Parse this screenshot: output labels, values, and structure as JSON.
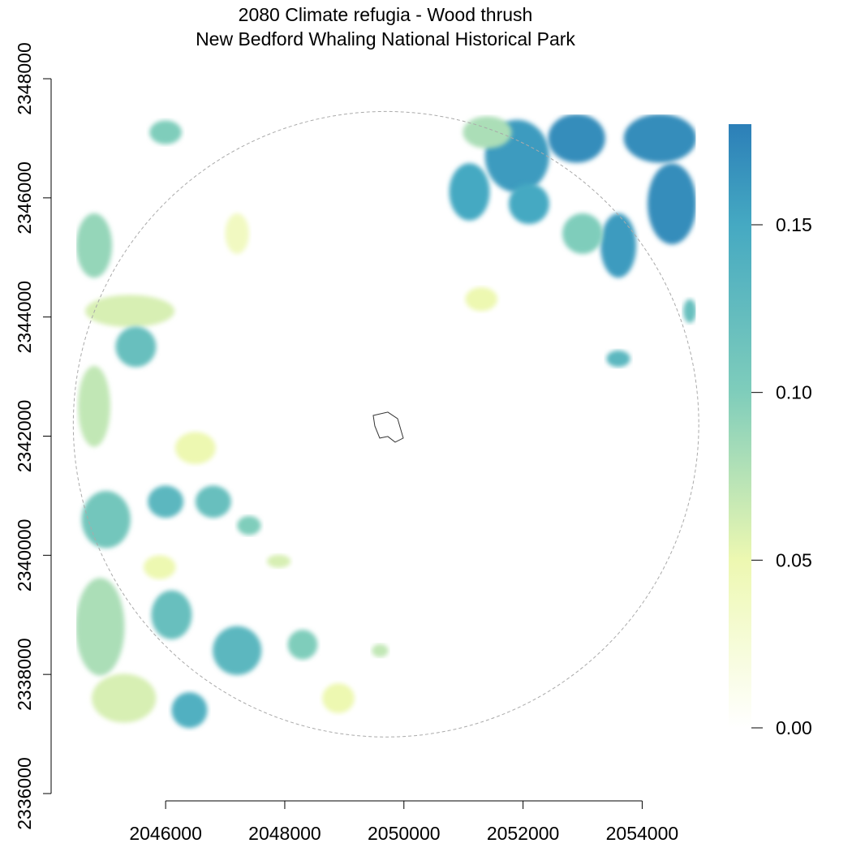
{
  "chart_data": {
    "type": "raster",
    "title": "2080 Climate refugia - Wood thrush",
    "subtitle": "New Bedford Whaling National Historical Park",
    "xlim": [
      2044500,
      2054900
    ],
    "ylim": [
      2335700,
      2348300
    ],
    "xticks": [
      2046000,
      2048000,
      2050000,
      2052000,
      2054000
    ],
    "yticks": [
      2336000,
      2338000,
      2340000,
      2342000,
      2344000,
      2346000,
      2348000
    ],
    "raster_extent": {
      "x": [
        2044500,
        2054900
      ],
      "y": [
        2336900,
        2347400
      ]
    },
    "zlim": [
      0,
      0.18
    ],
    "colorscale": [
      {
        "value": 0,
        "color": "#ffffff"
      },
      {
        "value": 0.05,
        "color": "#edf8b1"
      },
      {
        "value": 0.1,
        "color": "#7fcdbb"
      },
      {
        "value": 0.15,
        "color": "#45a9c2"
      },
      {
        "value": 0.18,
        "color": "#2c7fb8"
      }
    ],
    "zticks": [
      {
        "value": 0,
        "label": "0.00"
      },
      0.05,
      {
        "value": 0.1,
        "label": "0.10"
      },
      0.15
    ],
    "patches": {
      "x": [
        2051900,
        2052900,
        2054300,
        2054500,
        2053600,
        2051100,
        2052100,
        2053000,
        2051400,
        2053600,
        2044800,
        2045400,
        2045500,
        2044800,
        2045000,
        2046000,
        2046800,
        2044900,
        2045300,
        2046400,
        2046100,
        2047200,
        2048300,
        2048900,
        2046000,
        2046500,
        2047900,
        2047400,
        2051300,
        2054800,
        2049600,
        2047200,
        2045900
      ],
      "y": [
        2346700,
        2347000,
        2347000,
        2345900,
        2345200,
        2346100,
        2345900,
        2345400,
        2347100,
        2343300,
        2345200,
        2344100,
        2343500,
        2342500,
        2340600,
        2340900,
        2340900,
        2338800,
        2337600,
        2337400,
        2339000,
        2338400,
        2338500,
        2337600,
        2347100,
        2341800,
        2339900,
        2340500,
        2344300,
        2344100,
        2338400,
        2345400,
        2339800
      ],
      "rx": [
        540,
        480,
        610,
        410,
        300,
        340,
        340,
        340,
        410,
        200,
        300,
        750,
        340,
        270,
        410,
        300,
        300,
        410,
        540,
        300,
        340,
        410,
        250,
        270,
        270,
        340,
        200,
        200,
        270,
        110,
        140,
        200,
        270
      ],
      "ry": [
        610,
        410,
        410,
        680,
        540,
        480,
        340,
        340,
        270,
        140,
        540,
        270,
        340,
        680,
        480,
        270,
        270,
        820,
        410,
        300,
        410,
        410,
        250,
        250,
        200,
        270,
        110,
        160,
        200,
        200,
        110,
        340,
        200
      ],
      "values": [
        0.16,
        0.17,
        0.17,
        0.17,
        0.16,
        0.15,
        0.15,
        0.1,
        0.08,
        0.13,
        0.09,
        0.06,
        0.12,
        0.07,
        0.11,
        0.13,
        0.12,
        0.08,
        0.06,
        0.14,
        0.12,
        0.13,
        0.1,
        0.05,
        0.1,
        0.05,
        0.06,
        0.1,
        0.05,
        0.12,
        0.07,
        0.04,
        0.05
      ]
    },
    "buffer": {
      "center": [
        2049700,
        2342200
      ],
      "radius": 5250
    },
    "park_outline": {
      "x": [
        2049485,
        2049730,
        2049894,
        2049989,
        2049853,
        2049730,
        2049594,
        2049512
      ],
      "y": [
        2342348,
        2342403,
        2342294,
        2341967,
        2341899,
        2341994,
        2341967,
        2342171
      ]
    }
  }
}
